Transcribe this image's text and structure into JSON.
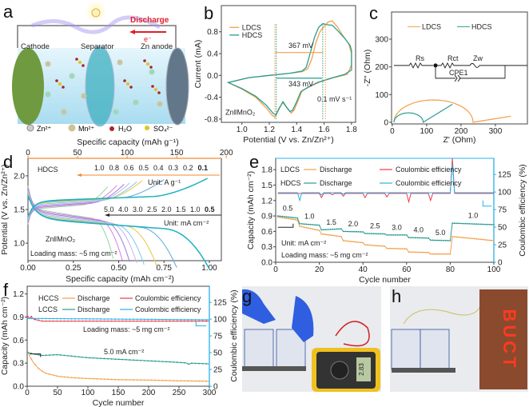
{
  "panel_labels": {
    "a": "a",
    "b": "b",
    "c": "c",
    "d": "d",
    "e": "e",
    "f": "f",
    "g": "g",
    "h": "h"
  },
  "panel_a": {
    "discharge": "Discharge",
    "electron": "e⁻",
    "cathode": "Cathode",
    "separator": "Separator",
    "anode": "Zn anode",
    "legend": [
      "Zn²⁺",
      "Mn²⁺",
      "H₂O",
      "SO₄²⁻"
    ],
    "colors": {
      "electrolyte": "#bfe6f5",
      "cathode": "#7fa84a",
      "separator": "#3fb0c0",
      "anode": "#6a7f90",
      "discharge": "#e0202a",
      "glow": "#8f7fe8"
    }
  },
  "panel_g": {
    "meter_reading": "2.83"
  },
  "panel_h": {
    "led_text": "BUCT"
  },
  "chart_data": [
    {
      "panel": "b",
      "type": "line",
      "xlabel": "Potential (V vs. Zn/Zn²⁺)",
      "ylabel": "Current (mA)",
      "xlim": [
        0.85,
        1.83
      ],
      "ylim": [
        -0.86,
        1.28
      ],
      "xticks": [
        "1.0",
        "1.2",
        "1.4",
        "1.6",
        "1.8"
      ],
      "yticks": [
        "-0.8",
        "-0.4",
        "0.0",
        "0.4",
        "0.8"
      ],
      "series": [
        {
          "name": "LDCS",
          "color": "#f2a04a",
          "points": [
            [
              1.8,
              0.4
            ],
            [
              1.78,
              0.58
            ],
            [
              1.74,
              0.72
            ],
            [
              1.7,
              0.88
            ],
            [
              1.66,
              1.0
            ],
            [
              1.63,
              0.98
            ],
            [
              1.6,
              0.9
            ],
            [
              1.57,
              0.8
            ],
            [
              1.54,
              0.6
            ],
            [
              1.51,
              0.3
            ],
            [
              1.48,
              0.12
            ],
            [
              1.44,
              0.07
            ],
            [
              1.35,
              0.04
            ],
            [
              1.2,
              0.0
            ],
            [
              1.05,
              -0.04
            ],
            [
              0.9,
              -0.13
            ],
            [
              1.0,
              -0.25
            ],
            [
              1.1,
              -0.4
            ],
            [
              1.18,
              -0.6
            ],
            [
              1.22,
              -0.73
            ],
            [
              1.24,
              -0.76
            ],
            [
              1.27,
              -0.6
            ],
            [
              1.3,
              -0.5
            ],
            [
              1.33,
              -0.6
            ],
            [
              1.36,
              -0.69
            ],
            [
              1.38,
              -0.64
            ],
            [
              1.41,
              -0.46
            ],
            [
              1.44,
              -0.28
            ],
            [
              1.5,
              -0.2
            ],
            [
              1.57,
              -0.12
            ],
            [
              1.67,
              -0.04
            ],
            [
              1.77,
              0.02
            ],
            [
              1.8,
              0.2
            ],
            [
              1.8,
              0.4
            ]
          ]
        },
        {
          "name": "HDCS",
          "color": "#2a9d92",
          "points": [
            [
              1.8,
              0.46
            ],
            [
              1.79,
              0.55
            ],
            [
              1.75,
              0.68
            ],
            [
              1.7,
              0.82
            ],
            [
              1.66,
              0.92
            ],
            [
              1.62,
              0.93
            ],
            [
              1.59,
              0.95
            ],
            [
              1.56,
              0.88
            ],
            [
              1.53,
              0.7
            ],
            [
              1.5,
              0.42
            ],
            [
              1.47,
              0.15
            ],
            [
              1.44,
              0.08
            ],
            [
              1.35,
              0.04
            ],
            [
              1.2,
              0.0
            ],
            [
              1.05,
              -0.04
            ],
            [
              0.9,
              -0.13
            ],
            [
              1.0,
              -0.24
            ],
            [
              1.1,
              -0.38
            ],
            [
              1.18,
              -0.55
            ],
            [
              1.23,
              -0.7
            ],
            [
              1.25,
              -0.72
            ],
            [
              1.27,
              -0.62
            ],
            [
              1.3,
              -0.48
            ],
            [
              1.32,
              -0.56
            ],
            [
              1.35,
              -0.66
            ],
            [
              1.37,
              -0.64
            ],
            [
              1.4,
              -0.48
            ],
            [
              1.43,
              -0.3
            ],
            [
              1.48,
              -0.22
            ],
            [
              1.55,
              -0.13
            ],
            [
              1.65,
              -0.05
            ],
            [
              1.75,
              0.02
            ],
            [
              1.8,
              0.1
            ],
            [
              1.8,
              0.46
            ]
          ]
        }
      ],
      "annotations": {
        "gap_ldcs": "367 mV",
        "gap_hdcs": "343 mV",
        "scan_rate": "0.1 mV s⁻¹",
        "system": "Zn‖MnO₂",
        "ldcs_peaks": [
          1.24,
          1.61
        ],
        "hdcs_peaks": [
          1.25,
          1.59
        ]
      }
    },
    {
      "panel": "c",
      "type": "line",
      "xlabel": "Z' (Ohm)",
      "ylabel": "-Z'' (Ohm)",
      "xlim": [
        -2,
        393
      ],
      "ylim": [
        -6,
        398
      ],
      "xticks": [
        "0",
        "100",
        "200",
        "300"
      ],
      "yticks": [
        "0",
        "100",
        "200",
        "300"
      ],
      "series": [
        {
          "name": "LDCS",
          "color": "#f2a04a",
          "semicircle": [
            5,
            235
          ],
          "tail": [
            [
              235,
              0
            ],
            [
              345,
              22
            ]
          ]
        },
        {
          "name": "HDCS",
          "color": "#2a9d92",
          "semicircle": [
            5,
            90
          ],
          "tail": [
            [
              90,
              0
            ],
            [
              175,
              65
            ]
          ]
        }
      ],
      "circuit": {
        "elements": [
          "Rs",
          "Rct",
          "Zw",
          "CPE1"
        ]
      }
    },
    {
      "panel": "d",
      "type": "line",
      "title_series": "HDCS",
      "xlabel": "Specific capacity (mAh cm⁻²)",
      "ylabel": "Potential (V vs. Zn/Zn²⁺)",
      "x2label": "Specific capacity (mAh g⁻¹)",
      "xlim": [
        0,
        1.066
      ],
      "x2lim": [
        0,
        195
      ],
      "ylim": [
        0.74,
        2.26
      ],
      "xticks": [
        "0.00",
        "0.25",
        "0.50",
        "0.75",
        "1.00"
      ],
      "x2ticks": [
        "0",
        "50",
        "100",
        "150",
        "200"
      ],
      "yticks": [
        "1.0",
        "1.5",
        "2.0"
      ],
      "rates_A_g": [
        "1.0",
        "0.8",
        "0.6",
        "0.5",
        "0.4",
        "0.3",
        "0.2",
        "0.1"
      ],
      "rates_mA_cm2": [
        "5.0",
        "4.0",
        "3.0",
        "2.5",
        "2.0",
        "1.5",
        "1.0",
        "0.5"
      ],
      "unit_A_g": "Unit: A g⁻¹",
      "unit_mA_cm2": "Unit: mA cm⁻²",
      "discharge_capacity": [
        0.47,
        0.52,
        0.56,
        0.6,
        0.64,
        0.71,
        0.82,
        1.0
      ],
      "charge_capacity": [
        0.44,
        0.49,
        0.53,
        0.56,
        0.6,
        0.63,
        0.75,
        0.99
      ],
      "colors": [
        "#8fd8a0",
        "#e07ce0",
        "#a07cd8",
        "#c4b4f0",
        "#7cc8f0",
        "#e8c840",
        "#5aa8e0",
        "#1fb0c0"
      ],
      "annotations": {
        "system": "Zn‖MnO₂",
        "loading": "Loading mass: ~5 mg cm⁻²"
      }
    },
    {
      "panel": "e",
      "type": "line",
      "xlabel": "Cycle number",
      "ylabel": "Capacity (mAh cm⁻²)",
      "y2label": "Coulombic efficiency (%)",
      "xlim": [
        0,
        100
      ],
      "ylim": [
        0,
        2.02
      ],
      "y2lim": [
        0,
        148
      ],
      "xticks": [
        "0",
        "20",
        "40",
        "60",
        "80",
        "100"
      ],
      "yticks": [
        "0.0",
        "0.3",
        "0.6",
        "0.9",
        "1.2",
        "1.5",
        "1.8"
      ],
      "y2ticks": [
        "0",
        "25",
        "50",
        "75",
        "100",
        "125"
      ],
      "legend": [
        {
          "group": "LDCS",
          "label": "Discharge",
          "color": "#f2a04a"
        },
        {
          "group": "",
          "label": "Coulombic efficiency",
          "color": "#e8404a"
        },
        {
          "group": "HDCS",
          "label": "Discharge",
          "color": "#2a9d92"
        },
        {
          "group": "",
          "label": "Coulombic efficiency",
          "color": "#2ab0e8"
        }
      ],
      "segments": [
        {
          "rate": "0.5",
          "cycles": [
            1,
            10
          ],
          "ldcs": [
            0.88,
            0.82
          ],
          "hdcs": [
            0.9,
            0.86
          ]
        },
        {
          "rate": "1.0",
          "cycles": [
            11,
            20
          ],
          "ldcs": [
            0.7,
            0.62
          ],
          "hdcs": [
            0.75,
            0.72
          ]
        },
        {
          "rate": "1.5",
          "cycles": [
            21,
            30
          ],
          "ldcs": [
            0.55,
            0.5
          ],
          "hdcs": [
            0.63,
            0.65
          ]
        },
        {
          "rate": "2.0",
          "cycles": [
            31,
            40
          ],
          "ldcs": [
            0.42,
            0.38
          ],
          "hdcs": [
            0.6,
            0.59
          ]
        },
        {
          "rate": "2.5",
          "cycles": [
            41,
            50
          ],
          "ldcs": [
            0.34,
            0.31
          ],
          "hdcs": [
            0.56,
            0.55
          ]
        },
        {
          "rate": "3.0",
          "cycles": [
            51,
            60
          ],
          "ldcs": [
            0.27,
            0.26
          ],
          "hdcs": [
            0.53,
            0.53
          ]
        },
        {
          "rate": "4.0",
          "cycles": [
            61,
            70
          ],
          "ldcs": [
            0.2,
            0.19
          ],
          "hdcs": [
            0.48,
            0.47
          ]
        },
        {
          "rate": "5.0",
          "cycles": [
            71,
            80
          ],
          "ldcs": [
            0.16,
            0.16
          ],
          "hdcs": [
            0.43,
            0.42
          ]
        },
        {
          "rate": "1.0",
          "cycles": [
            81,
            100
          ],
          "ldcs": [
            0.5,
            0.42
          ],
          "hdcs": [
            0.76,
            0.73
          ]
        }
      ],
      "ce_baseline": {
        "ldcs": 99,
        "hdcs": 99
      },
      "ce_dips": {
        "ldcs": [
          [
            21,
            92
          ],
          [
            26,
            96
          ],
          [
            31,
            94
          ],
          [
            41,
            92
          ],
          [
            51,
            93
          ],
          [
            61,
            86
          ],
          [
            71,
            88
          ],
          [
            81,
            160
          ]
        ],
        "hdcs": [
          [
            11,
            88
          ],
          [
            21,
            96
          ],
          [
            31,
            97
          ],
          [
            81,
            140
          ]
        ]
      },
      "annotations": {
        "unit": "Unit: mA cm⁻²",
        "loading": "Loading mass: ~5 mg cm⁻²"
      }
    },
    {
      "panel": "f",
      "type": "line",
      "xlabel": "Cycle number",
      "ylabel": "Capacity (mAh cm⁻²)",
      "y2label": "Coulombic efficiency (%)",
      "xlim": [
        0,
        300
      ],
      "ylim": [
        0,
        1.3
      ],
      "y2lim": [
        0,
        149
      ],
      "xticks": [
        "0",
        "50",
        "100",
        "150",
        "200",
        "250",
        "300"
      ],
      "yticks": [
        "0.0",
        "0.3",
        "0.6",
        "0.9",
        "1.2"
      ],
      "y2ticks": [
        "0",
        "25",
        "50",
        "75",
        "100",
        "125"
      ],
      "legend": [
        {
          "group": "HCCS",
          "label": "Discharge",
          "color": "#f2a04a"
        },
        {
          "group": "",
          "label": "Coulombic efficiency",
          "color": "#e8404a"
        },
        {
          "group": "LCCS",
          "label": "Discharge",
          "color": "#2a9d92"
        },
        {
          "group": "",
          "label": "Coulombic efficiency",
          "color": "#2ab0e8"
        }
      ],
      "series": [
        {
          "name": "HCCS discharge",
          "axis": "left",
          "color": "#f2a04a",
          "points": [
            [
              1,
              0.44
            ],
            [
              5,
              0.38
            ],
            [
              10,
              0.31
            ],
            [
              20,
              0.22
            ],
            [
              30,
              0.17
            ],
            [
              50,
              0.13
            ],
            [
              75,
              0.11
            ],
            [
              100,
              0.1
            ],
            [
              150,
              0.085
            ],
            [
              200,
              0.08
            ],
            [
              250,
              0.07
            ],
            [
              300,
              0.065
            ]
          ]
        },
        {
          "name": "LCCS discharge",
          "axis": "left",
          "color": "#2a9d92",
          "points": [
            [
              1,
              0.44
            ],
            [
              10,
              0.42
            ],
            [
              25,
              0.4
            ],
            [
              50,
              0.41
            ],
            [
              100,
              0.37
            ],
            [
              150,
              0.35
            ],
            [
              200,
              0.33
            ],
            [
              250,
              0.31
            ],
            [
              264,
              0.3
            ],
            [
              266,
              0.28
            ],
            [
              270,
              0.3
            ],
            [
              300,
              0.29
            ]
          ]
        },
        {
          "name": "HCCS CE",
          "axis": "right",
          "color": "#e8404a",
          "points": [
            [
              1,
              104
            ],
            [
              4,
              101
            ],
            [
              7,
              104
            ],
            [
              10,
              100
            ],
            [
              25,
              97
            ],
            [
              300,
              97
            ]
          ]
        },
        {
          "name": "LCCS CE",
          "axis": "right",
          "color": "#2ab0e8",
          "points": [
            [
              1,
              101
            ],
            [
              300,
              99
            ]
          ]
        }
      ],
      "annotations": {
        "loading": "Loading mass: ~5 mg cm⁻²",
        "rate": "5.0 mA cm⁻²"
      }
    }
  ]
}
